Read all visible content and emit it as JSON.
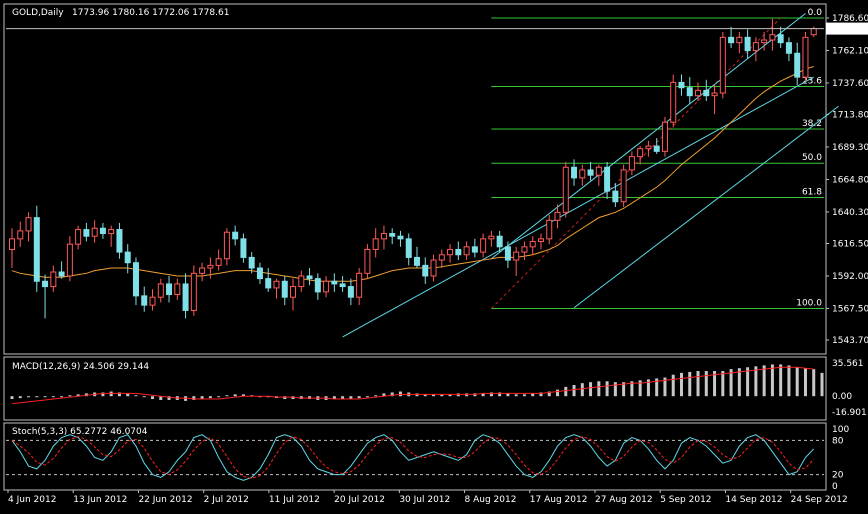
{
  "header": {
    "symbol": "GOLD,Daily",
    "ohlc": "1773.96 1780.16 1772.06 1778.61"
  },
  "colors": {
    "background": "#000000",
    "frame": "#c0c0c0",
    "bull_body": "#000000",
    "bull_border": "#ff5a5a",
    "bear_body": "#7fe0e8",
    "wick_bull": "#ff5a5a",
    "wick_bear": "#7fe0e8",
    "ma": "#f0a030",
    "fib": "#35c835",
    "channel": "#5fd8e8",
    "fib_trend": "#d02020",
    "macd_hist": "#c8c8c8",
    "macd_signal": "#ff2020",
    "stoch_main": "#5fd8e8",
    "stoch_signal": "#ff2020",
    "current_price_line": "#c0c0c0"
  },
  "chart_data": [
    {
      "type": "candlestick",
      "title": "GOLD,Daily",
      "ylim": [
        1543.7,
        1786.6
      ],
      "price_ticks": [
        "1786.60",
        "1762.10",
        "1737.60",
        "1713.80",
        "1689.30",
        "1664.80",
        "1640.30",
        "1616.50",
        "1592.00",
        "1567.50",
        "1543.70"
      ],
      "last_price": "1778.61",
      "x_labels": [
        "4 Jun 2012",
        "13 Jun 2012",
        "22 Jun 2012",
        "2 Jul 2012",
        "11 Jul 2012",
        "20 Jul 2012",
        "30 Jul 2012",
        "8 Aug 2012",
        "17 Aug 2012",
        "27 Aug 2012",
        "5 Sep 2012",
        "14 Sep 2012",
        "24 Sep 2012"
      ],
      "candles": [
        {
          "o": 1612,
          "h": 1628,
          "l": 1598,
          "c": 1620
        },
        {
          "o": 1620,
          "h": 1633,
          "l": 1614,
          "c": 1626
        },
        {
          "o": 1626,
          "h": 1640,
          "l": 1618,
          "c": 1636
        },
        {
          "o": 1636,
          "h": 1645,
          "l": 1580,
          "c": 1588
        },
        {
          "o": 1588,
          "h": 1593,
          "l": 1560,
          "c": 1584
        },
        {
          "o": 1584,
          "h": 1600,
          "l": 1580,
          "c": 1595
        },
        {
          "o": 1595,
          "h": 1603,
          "l": 1590,
          "c": 1592
        },
        {
          "o": 1592,
          "h": 1622,
          "l": 1588,
          "c": 1616
        },
        {
          "o": 1616,
          "h": 1630,
          "l": 1612,
          "c": 1627
        },
        {
          "o": 1627,
          "h": 1632,
          "l": 1618,
          "c": 1622
        },
        {
          "o": 1622,
          "h": 1634,
          "l": 1617,
          "c": 1628
        },
        {
          "o": 1628,
          "h": 1632,
          "l": 1620,
          "c": 1624
        },
        {
          "o": 1624,
          "h": 1630,
          "l": 1614,
          "c": 1627
        },
        {
          "o": 1627,
          "h": 1632,
          "l": 1605,
          "c": 1610
        },
        {
          "o": 1610,
          "h": 1616,
          "l": 1594,
          "c": 1602
        },
        {
          "o": 1602,
          "h": 1606,
          "l": 1570,
          "c": 1577
        },
        {
          "o": 1577,
          "h": 1584,
          "l": 1565,
          "c": 1570
        },
        {
          "o": 1570,
          "h": 1582,
          "l": 1566,
          "c": 1576
        },
        {
          "o": 1576,
          "h": 1590,
          "l": 1572,
          "c": 1586
        },
        {
          "o": 1586,
          "h": 1592,
          "l": 1572,
          "c": 1578
        },
        {
          "o": 1578,
          "h": 1590,
          "l": 1574,
          "c": 1586
        },
        {
          "o": 1586,
          "h": 1594,
          "l": 1560,
          "c": 1566
        },
        {
          "o": 1566,
          "h": 1600,
          "l": 1562,
          "c": 1594
        },
        {
          "o": 1594,
          "h": 1602,
          "l": 1588,
          "c": 1598
        },
        {
          "o": 1598,
          "h": 1606,
          "l": 1590,
          "c": 1600
        },
        {
          "o": 1600,
          "h": 1612,
          "l": 1596,
          "c": 1605
        },
        {
          "o": 1605,
          "h": 1628,
          "l": 1600,
          "c": 1625
        },
        {
          "o": 1625,
          "h": 1630,
          "l": 1615,
          "c": 1620
        },
        {
          "o": 1620,
          "h": 1624,
          "l": 1602,
          "c": 1606
        },
        {
          "o": 1606,
          "h": 1610,
          "l": 1594,
          "c": 1598
        },
        {
          "o": 1598,
          "h": 1602,
          "l": 1586,
          "c": 1590
        },
        {
          "o": 1590,
          "h": 1598,
          "l": 1580,
          "c": 1583
        },
        {
          "o": 1583,
          "h": 1590,
          "l": 1575,
          "c": 1588
        },
        {
          "o": 1588,
          "h": 1592,
          "l": 1570,
          "c": 1576
        },
        {
          "o": 1576,
          "h": 1590,
          "l": 1566,
          "c": 1584
        },
        {
          "o": 1584,
          "h": 1596,
          "l": 1580,
          "c": 1592
        },
        {
          "o": 1592,
          "h": 1598,
          "l": 1585,
          "c": 1590
        },
        {
          "o": 1590,
          "h": 1594,
          "l": 1574,
          "c": 1580
        },
        {
          "o": 1580,
          "h": 1592,
          "l": 1576,
          "c": 1588
        },
        {
          "o": 1588,
          "h": 1594,
          "l": 1580,
          "c": 1586
        },
        {
          "o": 1586,
          "h": 1592,
          "l": 1580,
          "c": 1584
        },
        {
          "o": 1584,
          "h": 1590,
          "l": 1570,
          "c": 1576
        },
        {
          "o": 1576,
          "h": 1598,
          "l": 1570,
          "c": 1594
        },
        {
          "o": 1594,
          "h": 1616,
          "l": 1590,
          "c": 1612
        },
        {
          "o": 1612,
          "h": 1628,
          "l": 1606,
          "c": 1620
        },
        {
          "o": 1620,
          "h": 1630,
          "l": 1612,
          "c": 1624
        },
        {
          "o": 1624,
          "h": 1628,
          "l": 1616,
          "c": 1622
        },
        {
          "o": 1622,
          "h": 1626,
          "l": 1614,
          "c": 1620
        },
        {
          "o": 1620,
          "h": 1624,
          "l": 1600,
          "c": 1606
        },
        {
          "o": 1606,
          "h": 1614,
          "l": 1598,
          "c": 1600
        },
        {
          "o": 1600,
          "h": 1606,
          "l": 1586,
          "c": 1592
        },
        {
          "o": 1592,
          "h": 1608,
          "l": 1588,
          "c": 1604
        },
        {
          "o": 1604,
          "h": 1612,
          "l": 1598,
          "c": 1608
        },
        {
          "o": 1608,
          "h": 1616,
          "l": 1602,
          "c": 1612
        },
        {
          "o": 1612,
          "h": 1618,
          "l": 1604,
          "c": 1608
        },
        {
          "o": 1608,
          "h": 1618,
          "l": 1604,
          "c": 1614
        },
        {
          "o": 1614,
          "h": 1620,
          "l": 1606,
          "c": 1610
        },
        {
          "o": 1610,
          "h": 1624,
          "l": 1606,
          "c": 1620
        },
        {
          "o": 1620,
          "h": 1626,
          "l": 1614,
          "c": 1622
        },
        {
          "o": 1622,
          "h": 1626,
          "l": 1610,
          "c": 1614
        },
        {
          "o": 1614,
          "h": 1618,
          "l": 1598,
          "c": 1604
        },
        {
          "o": 1604,
          "h": 1614,
          "l": 1592,
          "c": 1610
        },
        {
          "o": 1610,
          "h": 1618,
          "l": 1604,
          "c": 1614
        },
        {
          "o": 1614,
          "h": 1622,
          "l": 1608,
          "c": 1618
        },
        {
          "o": 1618,
          "h": 1624,
          "l": 1612,
          "c": 1620
        },
        {
          "o": 1620,
          "h": 1638,
          "l": 1616,
          "c": 1634
        },
        {
          "o": 1634,
          "h": 1646,
          "l": 1628,
          "c": 1640
        },
        {
          "o": 1640,
          "h": 1678,
          "l": 1636,
          "c": 1674
        },
        {
          "o": 1674,
          "h": 1680,
          "l": 1660,
          "c": 1666
        },
        {
          "o": 1666,
          "h": 1676,
          "l": 1660,
          "c": 1672
        },
        {
          "o": 1672,
          "h": 1678,
          "l": 1664,
          "c": 1668
        },
        {
          "o": 1668,
          "h": 1676,
          "l": 1660,
          "c": 1674
        },
        {
          "o": 1674,
          "h": 1678,
          "l": 1650,
          "c": 1656
        },
        {
          "o": 1656,
          "h": 1662,
          "l": 1644,
          "c": 1648
        },
        {
          "o": 1648,
          "h": 1676,
          "l": 1644,
          "c": 1672
        },
        {
          "o": 1672,
          "h": 1686,
          "l": 1668,
          "c": 1682
        },
        {
          "o": 1682,
          "h": 1690,
          "l": 1676,
          "c": 1688
        },
        {
          "o": 1688,
          "h": 1694,
          "l": 1682,
          "c": 1690
        },
        {
          "o": 1690,
          "h": 1696,
          "l": 1684,
          "c": 1686
        },
        {
          "o": 1686,
          "h": 1712,
          "l": 1682,
          "c": 1708
        },
        {
          "o": 1708,
          "h": 1744,
          "l": 1704,
          "c": 1738
        },
        {
          "o": 1738,
          "h": 1744,
          "l": 1728,
          "c": 1734
        },
        {
          "o": 1734,
          "h": 1742,
          "l": 1722,
          "c": 1728
        },
        {
          "o": 1728,
          "h": 1738,
          "l": 1724,
          "c": 1732
        },
        {
          "o": 1732,
          "h": 1740,
          "l": 1724,
          "c": 1728
        },
        {
          "o": 1728,
          "h": 1736,
          "l": 1714,
          "c": 1730
        },
        {
          "o": 1730,
          "h": 1776,
          "l": 1726,
          "c": 1772
        },
        {
          "o": 1772,
          "h": 1780,
          "l": 1764,
          "c": 1768
        },
        {
          "o": 1768,
          "h": 1776,
          "l": 1760,
          "c": 1772
        },
        {
          "o": 1772,
          "h": 1778,
          "l": 1756,
          "c": 1762
        },
        {
          "o": 1762,
          "h": 1772,
          "l": 1754,
          "c": 1768
        },
        {
          "o": 1768,
          "h": 1776,
          "l": 1762,
          "c": 1770
        },
        {
          "o": 1770,
          "h": 1786,
          "l": 1762,
          "c": 1774
        },
        {
          "o": 1774,
          "h": 1780,
          "l": 1764,
          "c": 1768
        },
        {
          "o": 1768,
          "h": 1772,
          "l": 1754,
          "c": 1760
        },
        {
          "o": 1760,
          "h": 1768,
          "l": 1736,
          "c": 1742
        },
        {
          "o": 1742,
          "h": 1776,
          "l": 1738,
          "c": 1772
        },
        {
          "o": 1773.96,
          "h": 1780.16,
          "l": 1772.06,
          "c": 1778.61
        }
      ],
      "moving_average": [
        1596,
        1594,
        1593,
        1592,
        1591,
        1591,
        1591,
        1592,
        1593,
        1594,
        1596,
        1597,
        1598,
        1598,
        1598,
        1597,
        1596,
        1595,
        1594,
        1593,
        1592,
        1592,
        1592,
        1592,
        1593,
        1594,
        1595,
        1596,
        1596,
        1596,
        1595,
        1594,
        1593,
        1592,
        1591,
        1590,
        1589,
        1588,
        1588,
        1588,
        1588,
        1588,
        1589,
        1590,
        1592,
        1594,
        1596,
        1597,
        1598,
        1598,
        1598,
        1598,
        1599,
        1600,
        1601,
        1602,
        1603,
        1604,
        1605,
        1606,
        1606,
        1606,
        1607,
        1608,
        1610,
        1612,
        1615,
        1620,
        1624,
        1628,
        1632,
        1636,
        1638,
        1640,
        1643,
        1647,
        1651,
        1655,
        1659,
        1664,
        1670,
        1676,
        1681,
        1686,
        1691,
        1696,
        1702,
        1708,
        1714,
        1720,
        1726,
        1731,
        1735,
        1739,
        1742,
        1745,
        1748,
        1750
      ],
      "fibonacci": {
        "levels": [
          "0.0",
          "23.6",
          "38.2",
          "50.0",
          "61.8",
          "100.0"
        ],
        "high": 1786.6,
        "low": 1567.5
      }
    },
    {
      "type": "bar",
      "title": "MACD(12,26,9) 24.506 29.144",
      "ylim": [
        -16.901,
        35.561
      ],
      "ticks": [
        "35.561",
        "0.00",
        "-16.901"
      ],
      "histogram": [
        -3,
        -2,
        -1,
        0,
        -1,
        -1,
        0,
        1,
        2,
        3,
        4,
        4,
        5,
        4,
        3,
        1,
        -1,
        -3,
        -4,
        -4,
        -4,
        -5,
        -4,
        -3,
        -2,
        -1,
        1,
        2,
        2,
        1,
        0,
        -1,
        -2,
        -3,
        -3,
        -3,
        -3,
        -4,
        -4,
        -3,
        -3,
        -3,
        -2,
        -1,
        1,
        3,
        4,
        5,
        4,
        3,
        2,
        2,
        2,
        2,
        3,
        3,
        3,
        3,
        4,
        4,
        3,
        2,
        2,
        3,
        4,
        5,
        7,
        10,
        12,
        14,
        15,
        16,
        16,
        15,
        15,
        16,
        17,
        18,
        19,
        20,
        23,
        25,
        26,
        27,
        27,
        27,
        27,
        29,
        30,
        31,
        32,
        33,
        34,
        34,
        33,
        31,
        30,
        29,
        25
      ],
      "signal": [
        -8,
        -7,
        -6,
        -5,
        -4,
        -3,
        -2,
        -1,
        0,
        1,
        2,
        3,
        3,
        3,
        3,
        3,
        2,
        1,
        0,
        -1,
        -2,
        -2,
        -3,
        -3,
        -3,
        -3,
        -2,
        -1,
        0,
        0,
        0,
        0,
        -1,
        -1,
        -1,
        -2,
        -2,
        -2,
        -2,
        -3,
        -3,
        -3,
        -3,
        -2,
        -1,
        0,
        1,
        2,
        2,
        2,
        2,
        2,
        2,
        2,
        2,
        2,
        2,
        3,
        3,
        3,
        3,
        3,
        3,
        3,
        3,
        4,
        5,
        6,
        7,
        8,
        9,
        10,
        11,
        12,
        13,
        14,
        14,
        15,
        16,
        17,
        18,
        19,
        20,
        21,
        22,
        23,
        24,
        25,
        26,
        27,
        28,
        29,
        30,
        31,
        31,
        31,
        30,
        29
      ]
    },
    {
      "type": "line",
      "title": "Stoch(5,3,3) 65.2772 46.0704",
      "ylim": [
        0,
        100
      ],
      "ticks": [
        "100",
        "80",
        "20",
        "0"
      ],
      "levels": [
        80,
        20
      ],
      "main": [
        80,
        60,
        35,
        30,
        45,
        70,
        85,
        90,
        85,
        70,
        50,
        45,
        60,
        85,
        90,
        70,
        40,
        20,
        15,
        25,
        45,
        60,
        85,
        90,
        80,
        50,
        25,
        15,
        10,
        15,
        30,
        55,
        85,
        90,
        85,
        70,
        45,
        30,
        25,
        20,
        20,
        35,
        55,
        75,
        85,
        90,
        80,
        60,
        45,
        50,
        55,
        60,
        55,
        50,
        45,
        55,
        80,
        90,
        85,
        75,
        55,
        35,
        20,
        15,
        25,
        45,
        70,
        85,
        90,
        85,
        70,
        50,
        35,
        45,
        75,
        85,
        80,
        65,
        45,
        30,
        45,
        75,
        85,
        80,
        70,
        55,
        40,
        45,
        70,
        85,
        90,
        80,
        60,
        40,
        20,
        25,
        50,
        65
      ]
    }
  ]
}
